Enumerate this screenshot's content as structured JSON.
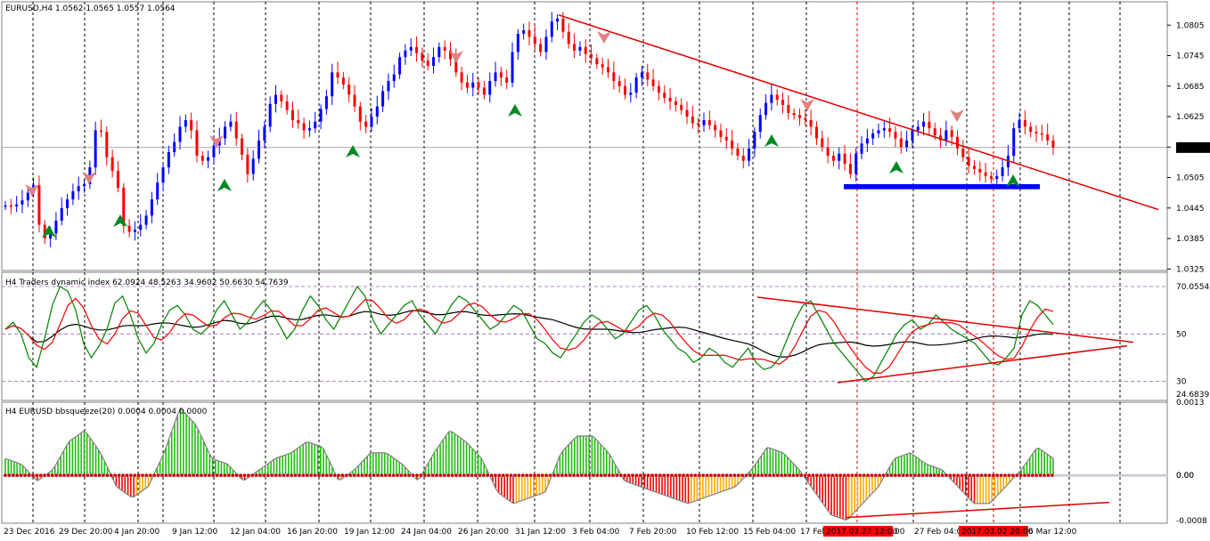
{
  "window": {
    "symbol_header": "EURUSD,H4  1.0562 1.0565 1.0557 1.0564",
    "price_tag": "1.0564"
  },
  "colors": {
    "bull": "#0000ff",
    "bear": "#ff0000",
    "trendline": "#e00000",
    "rsi_line": "#118811",
    "signal_line": "#ee1111",
    "mid_line": "#000000",
    "hist_up": "#22bb11",
    "hist_down_red": "#ee0000",
    "hist_down_orange": "#ffaa00",
    "arrow_up": "#008822",
    "arrow_down": "#e08080",
    "zero_dots": "#cc0000",
    "support_zone": "#0000ff"
  },
  "chart_data": [
    {
      "type": "candlestick",
      "title": "EURUSD,H4  1.0562 1.0565 1.0557 1.0564",
      "ylim": [
        1.0322,
        1.0851
      ],
      "y_ticks": [
        "1.0805",
        "1.0745",
        "1.0685",
        "1.0625",
        "1.0565",
        "1.0505",
        "1.0445",
        "1.0385",
        "1.0325"
      ],
      "y_tick_values": [
        1.0805,
        1.0745,
        1.0685,
        1.0625,
        1.0565,
        1.0505,
        1.0445,
        1.0385,
        1.0325
      ],
      "current_price": 1.0564,
      "x_tick_labels": [
        "23 Dec 2016",
        "29 Dec 20:00",
        "4 Jan 20:00",
        "9 Jan 12:00",
        "12 Jan 04:00",
        "16 Jan 20:00",
        "19 Jan 12:00",
        "24 Jan 04:00",
        "26 Jan 20:00",
        "31 Jan 12:00",
        "3 Feb 04:00",
        "7 Feb 20:00",
        "10 Feb 12:00",
        "15 Feb 04:00",
        "17 Feb",
        "",
        "27 Feb 04:00",
        "",
        "6 Mar 12:00"
      ],
      "highlight_labels": [
        "2017.02.22 12:00",
        "2017.03.02 20:00"
      ],
      "close_path": [
        1.045,
        1.0448,
        1.0452,
        1.046,
        1.0475,
        1.049,
        1.0412,
        1.0385,
        1.0395,
        1.042,
        1.0445,
        1.0462,
        1.0478,
        1.0488,
        1.0492,
        1.0525,
        1.0598,
        1.0595,
        1.0545,
        1.0518,
        1.0485,
        1.041,
        1.0398,
        1.0402,
        1.0412,
        1.043,
        1.0462,
        1.0495,
        1.0525,
        1.0555,
        1.0575,
        1.0605,
        1.0618,
        1.0598,
        1.0548,
        1.0538,
        1.0545,
        1.0568,
        1.0582,
        1.0605,
        1.0615,
        1.0582,
        1.055,
        1.0512,
        1.0542,
        1.0578,
        1.0605,
        1.065,
        1.0668,
        1.0655,
        1.0638,
        1.0618,
        1.0612,
        1.0598,
        1.0602,
        1.0615,
        1.064,
        1.0665,
        1.0712,
        1.0702,
        1.0688,
        1.0668,
        1.0645,
        1.0615,
        1.0605,
        1.0625,
        1.0645,
        1.0675,
        1.0695,
        1.0708,
        1.0742,
        1.0755,
        1.0762,
        1.075,
        1.0735,
        1.0725,
        1.0742,
        1.0762,
        1.0755,
        1.0738,
        1.0712,
        1.0692,
        1.0682,
        1.0692,
        1.0682,
        1.0668,
        1.0695,
        1.0712,
        1.0702,
        1.0692,
        1.0752,
        1.0788,
        1.0795,
        1.0782,
        1.0768,
        1.0752,
        1.0782,
        1.0812,
        1.0818,
        1.0792,
        1.0768,
        1.0755,
        1.0762,
        1.0748,
        1.074,
        1.0728,
        1.0722,
        1.0712,
        1.0695,
        1.0685,
        1.0668,
        1.0672,
        1.0702,
        1.0712,
        1.0698,
        1.0685,
        1.0672,
        1.0662,
        1.0655,
        1.0648,
        1.0638,
        1.0625,
        1.0612,
        1.0608,
        1.0618,
        1.0608,
        1.0598,
        1.0585,
        1.0578,
        1.0562,
        1.0548,
        1.0538,
        1.0562,
        1.0595,
        1.0628,
        1.0652,
        1.0668,
        1.0658,
        1.0648,
        1.0632,
        1.0628,
        1.0622,
        1.0618,
        1.0605,
        1.0582,
        1.0565,
        1.0548,
        1.0538,
        1.0552,
        1.0532,
        1.0512,
        1.0552,
        1.0572,
        1.0582,
        1.0592,
        1.0598,
        1.0602,
        1.0595,
        1.0582,
        1.0565,
        1.0578,
        1.0598,
        1.0605,
        1.0615,
        1.0602,
        1.0588,
        1.0578,
        1.0598,
        1.0585,
        1.0562,
        1.0545,
        1.0528,
        1.0522,
        1.0515,
        1.0508,
        1.0502,
        1.0508,
        1.0525,
        1.0548,
        1.0602,
        1.0618,
        1.0605,
        1.0595,
        1.0592,
        1.059,
        1.0578,
        1.0564
      ],
      "series": [
        {
          "name": "trendline",
          "points": [
            [
              627,
              1.0825
            ],
            [
              1300,
              1.0442
            ]
          ]
        },
        {
          "name": "support_zone",
          "points": [
            [
              947,
              1.0492
            ],
            [
              1167,
              1.0482
            ]
          ]
        }
      ]
    },
    {
      "type": "line",
      "title": "H4 Traders dynamic index 62.0924 48.5263 34.9602 50.6630 54.7639",
      "ylim": [
        22,
        76
      ],
      "levels": [
        {
          "label": "70.0554",
          "value": 70
        },
        {
          "label": "50",
          "value": 50
        },
        {
          "label": "30",
          "value": 30
        },
        {
          "label": "24.6839",
          "value": 24.7
        }
      ],
      "rsi_path": [
        52,
        55,
        50,
        40,
        36,
        48,
        62,
        70,
        68,
        60,
        46,
        40,
        45,
        52,
        63,
        66,
        58,
        48,
        42,
        46,
        54,
        60,
        62,
        58,
        52,
        50,
        53,
        60,
        64,
        58,
        52,
        55,
        60,
        64,
        60,
        54,
        48,
        52,
        60,
        66,
        62,
        56,
        52,
        58,
        64,
        70,
        66,
        56,
        50,
        54,
        58,
        62,
        64,
        58,
        54,
        50,
        56,
        62,
        66,
        64,
        60,
        56,
        52,
        54,
        58,
        62,
        60,
        54,
        48,
        46,
        42,
        40,
        45,
        50,
        55,
        58,
        56,
        52,
        48,
        50,
        55,
        60,
        62,
        58,
        52,
        48,
        44,
        42,
        38,
        40,
        44,
        42,
        38,
        36,
        40,
        44,
        38,
        35,
        36,
        40,
        48,
        56,
        62,
        64,
        58,
        52,
        46,
        42,
        38,
        34,
        30,
        32,
        38,
        44,
        50,
        54,
        56,
        52,
        54,
        58,
        55,
        52,
        50,
        48,
        46,
        42,
        38,
        37,
        40,
        44,
        58,
        64,
        62,
        58,
        54
      ]
    },
    {
      "type": "bar",
      "title": "H4 EURUSD bbsqueeze(20) 0.0004 0.0004 0.0000",
      "ylim": [
        -0.00085,
        0.0013
      ],
      "y_ticks": [
        "0.0013",
        "0.00",
        "0.00",
        "-0.0008"
      ],
      "y_tick_values": [
        0.0013,
        0.0,
        0.0,
        -0.0008
      ],
      "values_path": [
        0.0003,
        0.0002,
        -0.0001,
        0.0001,
        0.0006,
        0.0008,
        0.0004,
        -0.0002,
        -0.0004,
        -0.0002,
        0.0004,
        0.0012,
        0.0009,
        0.0003,
        0.0002,
        -0.0001,
        0.0001,
        0.0003,
        0.0004,
        0.0006,
        0.0005,
        -0.0001,
        0.0001,
        0.0004,
        0.0004,
        0.0002,
        -0.0001,
        0.0004,
        0.0008,
        0.0006,
        0.0003,
        -0.0003,
        -0.0005,
        -0.0004,
        -0.0003,
        0.0004,
        0.0007,
        0.0007,
        0.0004,
        -0.0001,
        -0.0002,
        -0.0003,
        -0.0004,
        -0.0005,
        -0.0004,
        -0.0003,
        -0.0002,
        0.0001,
        0.0005,
        0.0004,
        0.0001,
        -0.0003,
        -0.0007,
        -0.0008,
        -0.0005,
        -0.0002,
        0.0003,
        0.0004,
        0.0002,
        0.0001,
        -0.0002,
        -0.0005,
        -0.0005,
        -0.0002,
        0.0001,
        0.0005,
        0.0003
      ]
    }
  ]
}
